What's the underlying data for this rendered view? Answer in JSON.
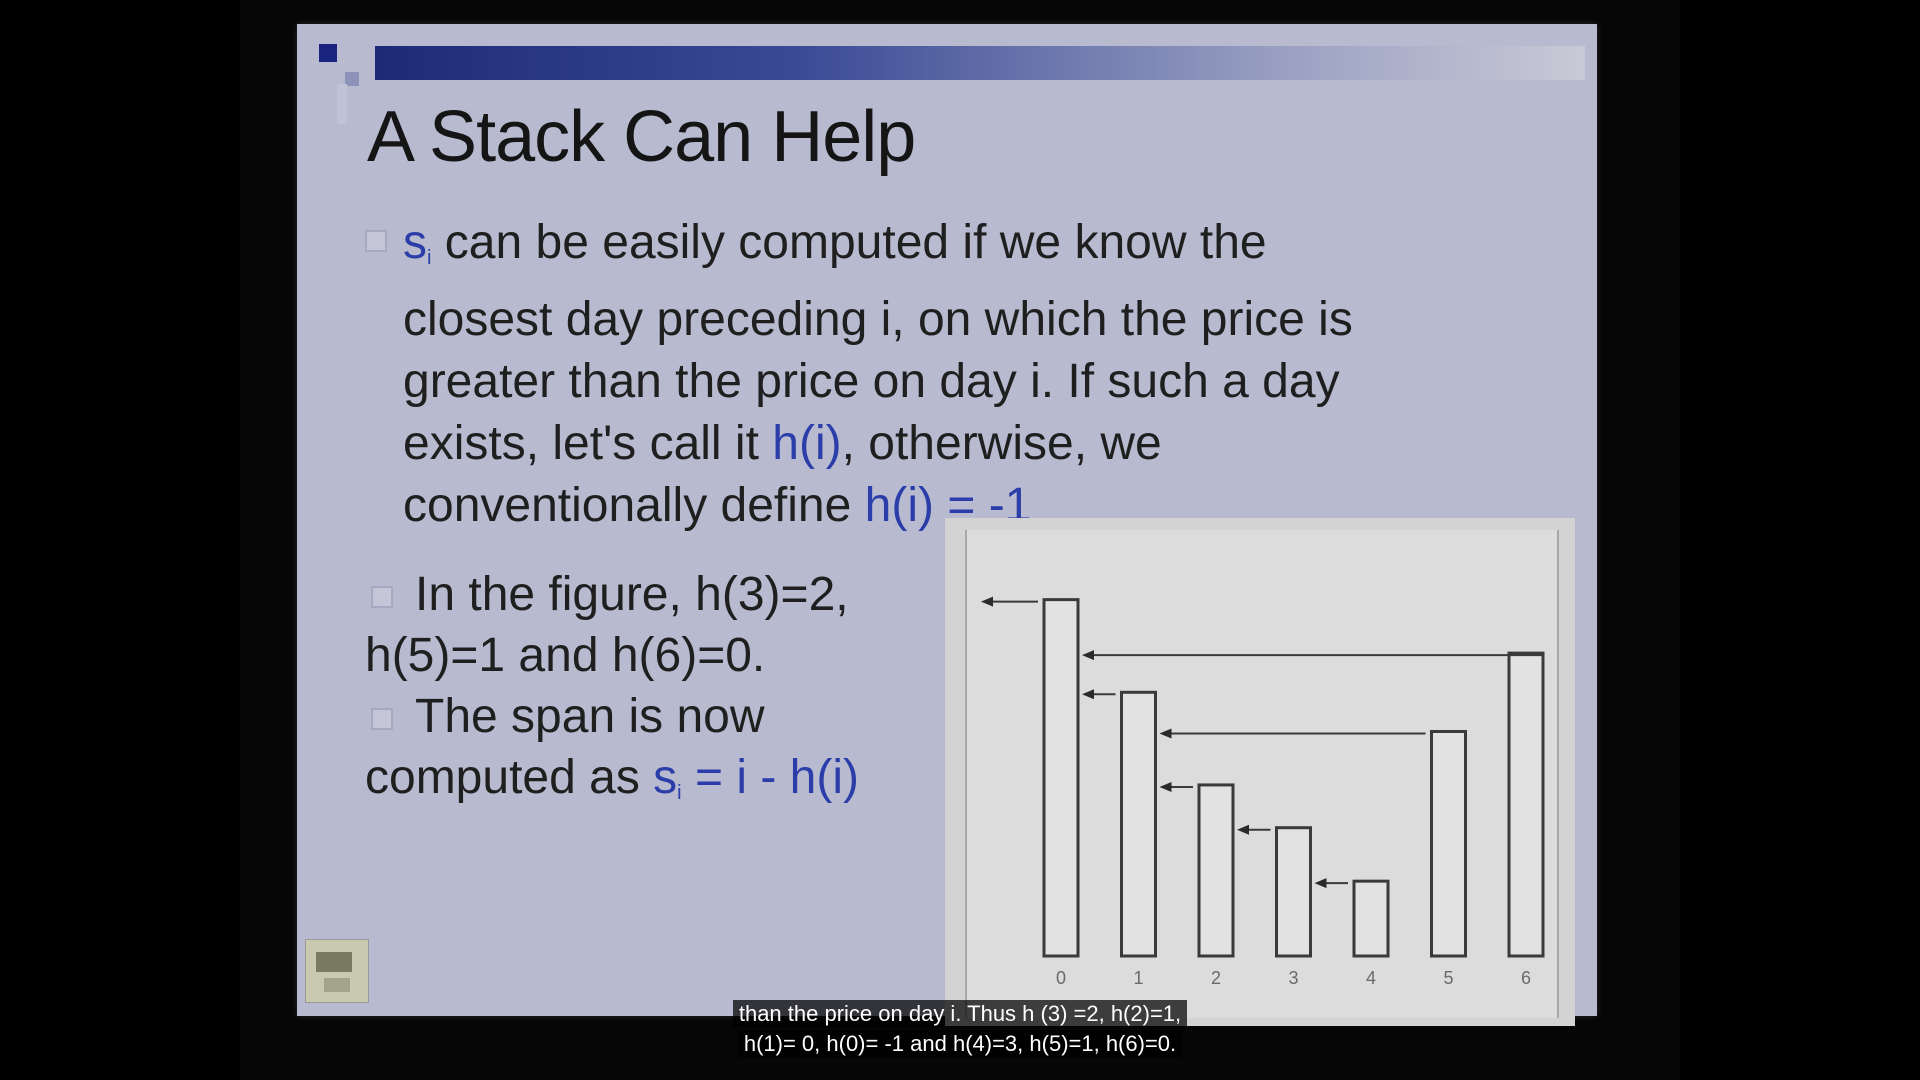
{
  "slide": {
    "title": "A Stack Can Help",
    "para1": {
      "p1": "s",
      "p1_sub": "i",
      "p2": " can be easily computed if we know the closest day preceding i, on which the price is greater than the price on day i. If such a day exists, let's call it ",
      "p3": "h(i)",
      "p4": ", otherwise, we conventionally define ",
      "p5": "h(i) = -1"
    },
    "para2": {
      "b1": "In the figure, h(3)=2, h(5)=1 and h(6)=0.",
      "b2a": "The span is now computed as ",
      "b2b": "s",
      "b2b_sub": "i",
      "b2c": " = i - h(i)"
    },
    "accent_color": "#2b3da8"
  },
  "chart_data": {
    "type": "bar",
    "categories": [
      "0",
      "1",
      "2",
      "3",
      "4",
      "5",
      "6"
    ],
    "values": [
      100,
      74,
      48,
      36,
      21,
      63,
      85
    ],
    "h": [
      -1,
      0,
      1,
      2,
      3,
      1,
      0
    ],
    "ylim": [
      0,
      110
    ],
    "xlabel": "",
    "ylabel": "",
    "title": "",
    "grid": false
  },
  "subtitle": {
    "line1": "than the price on day i. Thus h (3) =2, h(2)=1,",
    "line2": "h(1)= 0, h(0)= -1 and h(4)=3, h(5)=1, h(6)=0."
  }
}
